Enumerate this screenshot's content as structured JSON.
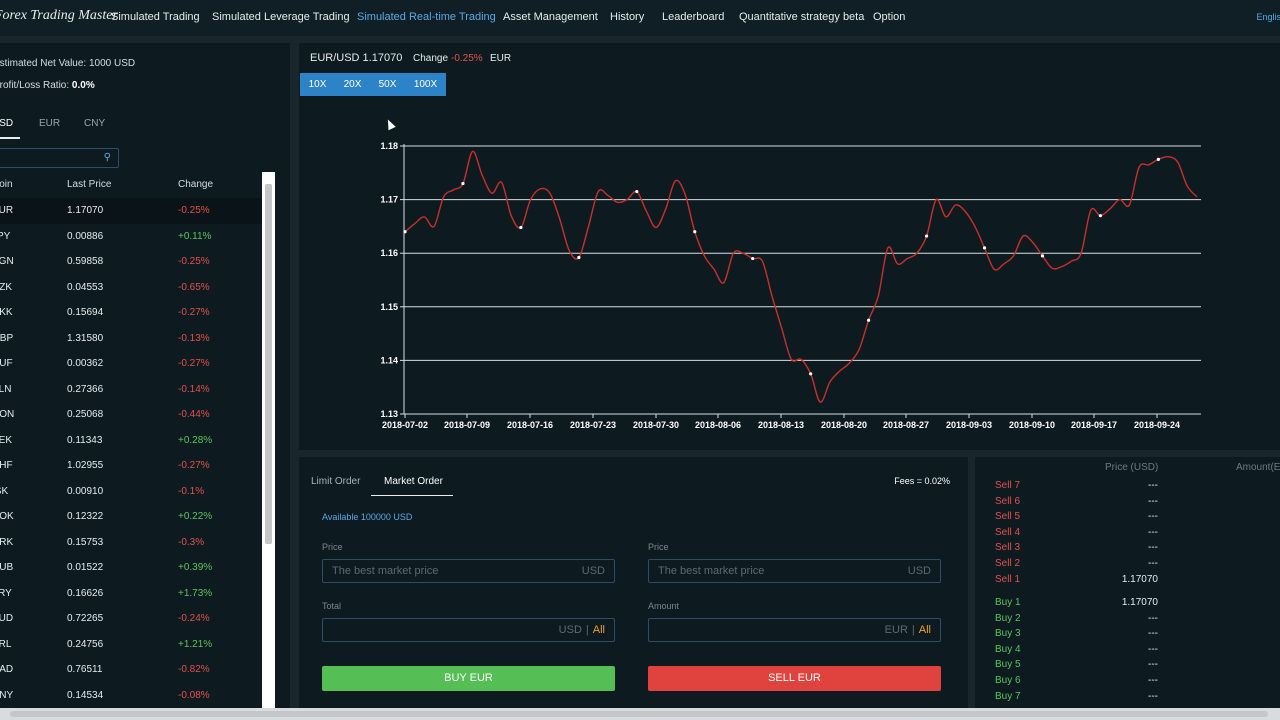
{
  "nav": {
    "brand": "Forex Trading Master",
    "items": [
      "Simulated Trading",
      "Simulated Leverage Trading",
      "Simulated Real-time Trading",
      "Asset Management",
      "History",
      "Leaderboard",
      "Quantitative strategy beta",
      "Option"
    ],
    "active_index": 2,
    "language": "English"
  },
  "sidebar": {
    "net_value_label": "Estimated Net Value: ",
    "net_value": "1000 USD",
    "pl_label": "Profit/Loss Ratio: ",
    "pl_value": "0.0%",
    "currency_tabs": [
      "USD",
      "EUR",
      "CNY"
    ],
    "active_currency": "USD",
    "search_placeholder": "",
    "headers": {
      "coin": "Coin",
      "price": "Last Price",
      "change": "Change"
    },
    "rows": [
      {
        "coin": "EUR",
        "price": "1.17070",
        "change": "-0.25%"
      },
      {
        "coin": "JPY",
        "price": "0.00886",
        "change": "+0.11%"
      },
      {
        "coin": "SGN",
        "price": "0.59858",
        "change": "-0.25%"
      },
      {
        "coin": "CZK",
        "price": "0.04553",
        "change": "-0.65%"
      },
      {
        "coin": "DKK",
        "price": "0.15694",
        "change": "-0.27%"
      },
      {
        "coin": "GBP",
        "price": "1.31580",
        "change": "-0.13%"
      },
      {
        "coin": "HUF",
        "price": "0.00362",
        "change": "-0.27%"
      },
      {
        "coin": "PLN",
        "price": "0.27366",
        "change": "-0.14%"
      },
      {
        "coin": "RON",
        "price": "0.25068",
        "change": "-0.44%"
      },
      {
        "coin": "SEK",
        "price": "0.11343",
        "change": "+0.28%"
      },
      {
        "coin": "CHF",
        "price": "1.02955",
        "change": "-0.27%"
      },
      {
        "coin": "ISK",
        "price": "0.00910",
        "change": "-0.1%"
      },
      {
        "coin": "NOK",
        "price": "0.12322",
        "change": "+0.22%"
      },
      {
        "coin": "HRK",
        "price": "0.15753",
        "change": "-0.3%"
      },
      {
        "coin": "RUB",
        "price": "0.01522",
        "change": "+0.39%"
      },
      {
        "coin": "TRY",
        "price": "0.16626",
        "change": "+1.73%"
      },
      {
        "coin": "AUD",
        "price": "0.72265",
        "change": "-0.24%"
      },
      {
        "coin": "BRL",
        "price": "0.24756",
        "change": "+1.21%"
      },
      {
        "coin": "CAD",
        "price": "0.76511",
        "change": "-0.82%"
      },
      {
        "coin": "CNY",
        "price": "0.14534",
        "change": "-0.08%"
      }
    ]
  },
  "chart_header": {
    "pair": "EUR/USD 1.17070",
    "change_label": "Change",
    "change_value": "-0.25%",
    "currency": "EUR",
    "leverage": [
      "10X",
      "20X",
      "50X",
      "100X"
    ]
  },
  "chart_data": {
    "type": "line",
    "x_ticks": [
      "2018-07-02",
      "2018-07-09",
      "2018-07-16",
      "2018-07-23",
      "2018-07-30",
      "2018-08-06",
      "2018-08-13",
      "2018-08-20",
      "2018-08-27",
      "2018-09-03",
      "2018-09-10",
      "2018-09-17",
      "2018-09-24"
    ],
    "y_ticks": [
      "1.13",
      "1.14",
      "1.15",
      "1.16",
      "1.17",
      "1.18"
    ],
    "ylim": [
      1.13,
      1.18
    ],
    "grid": "horizontal",
    "series_color": "#c8302a",
    "series": [
      {
        "values": [
          1.164,
          1.1655,
          1.1668,
          1.165,
          1.1705,
          1.1718,
          1.173,
          1.179,
          1.1745,
          1.1712,
          1.1732,
          1.167,
          1.1648,
          1.17,
          1.172,
          1.1712,
          1.1665,
          1.1605,
          1.1592,
          1.165,
          1.1715,
          1.1708,
          1.1695,
          1.17,
          1.1715,
          1.1678,
          1.1648,
          1.1683,
          1.1735,
          1.171,
          1.164,
          1.1595,
          1.157,
          1.1545,
          1.16,
          1.16,
          1.159,
          1.1585,
          1.152,
          1.146,
          1.1402,
          1.1402,
          1.1375,
          1.1322,
          1.136,
          1.138,
          1.1395,
          1.142,
          1.1475,
          1.152,
          1.161,
          1.158,
          1.159,
          1.16,
          1.1632,
          1.17,
          1.1668,
          1.169,
          1.1678,
          1.165,
          1.161,
          1.157,
          1.158,
          1.1595,
          1.1632,
          1.162,
          1.1595,
          1.1572,
          1.1575,
          1.1585,
          1.16,
          1.168,
          1.167,
          1.1683,
          1.17,
          1.169,
          1.176,
          1.1765,
          1.1775,
          1.178,
          1.177,
          1.1725,
          1.1705
        ]
      }
    ]
  },
  "order": {
    "tabs": [
      "Limit Order",
      "Market Order"
    ],
    "active_tab": 1,
    "fees": "Fees = 0.02%",
    "available": "Available 100000 USD",
    "buy": {
      "price_label": "Price",
      "price_placeholder": "The best market price",
      "price_unit": "USD",
      "total_label": "Total",
      "total_unit": "USD",
      "all_label": "All",
      "button": "BUY EUR"
    },
    "sell": {
      "price_label": "Price",
      "price_placeholder": "The best market price",
      "price_unit": "USD",
      "amount_label": "Amount",
      "amount_unit": "EUR",
      "all_label": "All",
      "button": "SELL EUR"
    }
  },
  "orderbook": {
    "price_header": "Price (USD)",
    "amount_header": "Amount(EUR)",
    "sells": [
      {
        "label": "Sell 7",
        "price": "---"
      },
      {
        "label": "Sell 6",
        "price": "---"
      },
      {
        "label": "Sell 5",
        "price": "---"
      },
      {
        "label": "Sell 4",
        "price": "---"
      },
      {
        "label": "Sell 3",
        "price": "---"
      },
      {
        "label": "Sell 2",
        "price": "---"
      },
      {
        "label": "Sell 1",
        "price": "1.17070"
      }
    ],
    "buys": [
      {
        "label": "Buy 1",
        "price": "1.17070"
      },
      {
        "label": "Buy 2",
        "price": "---"
      },
      {
        "label": "Buy 3",
        "price": "---"
      },
      {
        "label": "Buy 4",
        "price": "---"
      },
      {
        "label": "Buy 5",
        "price": "---"
      },
      {
        "label": "Buy 6",
        "price": "---"
      },
      {
        "label": "Buy 7",
        "price": "---"
      }
    ]
  }
}
